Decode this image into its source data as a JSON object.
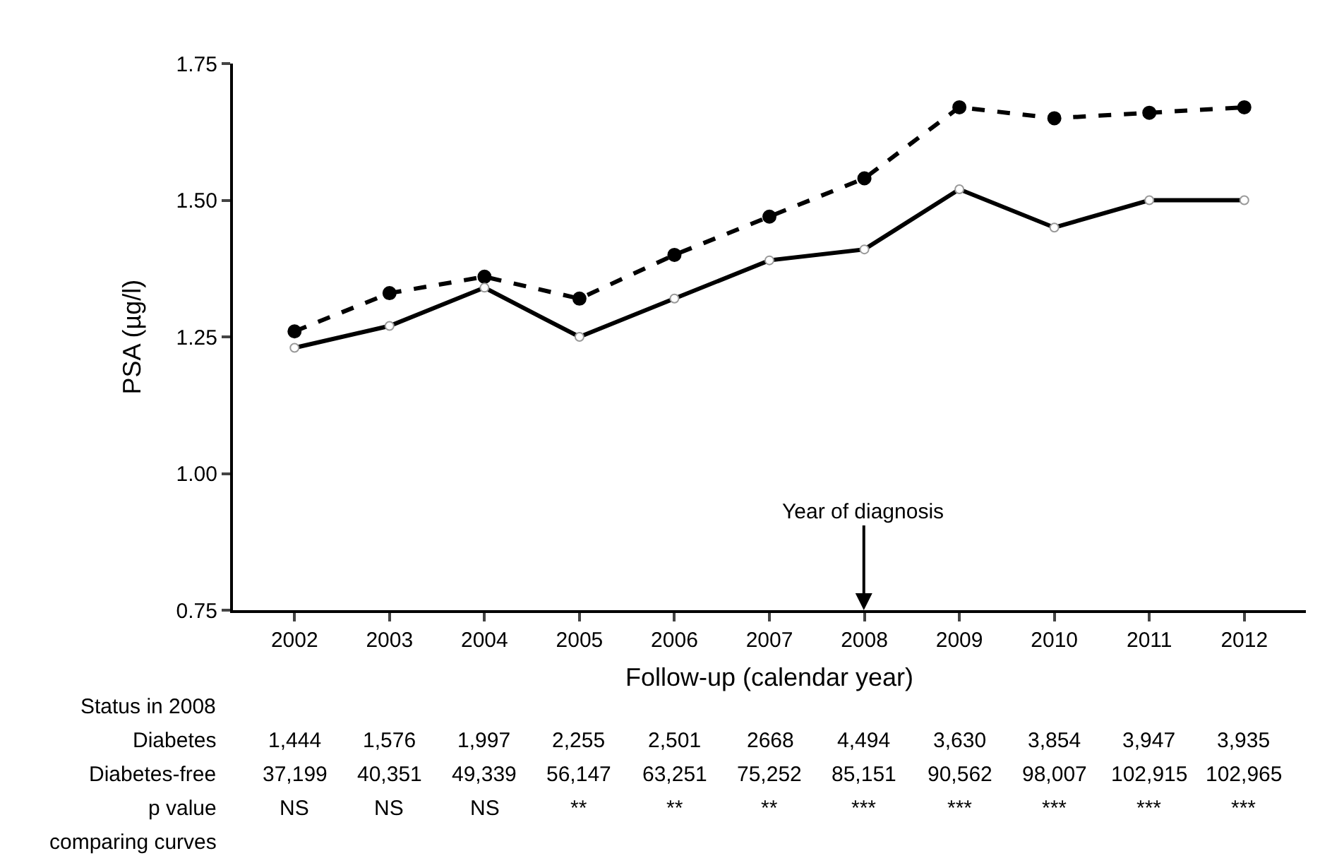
{
  "chart_data": {
    "type": "line",
    "xlabel": "Follow-up (calendar year)",
    "ylabel": "PSA (µg/l)",
    "categories": [
      "2002",
      "2003",
      "2004",
      "2005",
      "2006",
      "2007",
      "2008",
      "2009",
      "2010",
      "2011",
      "2012"
    ],
    "series": [
      {
        "color": "#000000",
        "line_style": "dashed",
        "values": [
          1.26,
          1.33,
          1.36,
          1.32,
          1.4,
          1.47,
          1.54,
          1.67,
          1.65,
          1.66,
          1.67
        ]
      },
      {
        "color": "#000000",
        "line_style": "solid",
        "values": [
          1.23,
          1.27,
          1.34,
          1.25,
          1.32,
          1.39,
          1.41,
          1.52,
          1.45,
          1.5,
          1.5
        ]
      }
    ],
    "ylim": [
      0.75,
      1.75
    ],
    "yticks": [
      {
        "value": 0.75,
        "label": "0.75"
      },
      {
        "value": 1,
        "label": "1.00"
      },
      {
        "value": 1.25,
        "label": "1.25"
      },
      {
        "value": 1.5,
        "label": "1.50"
      },
      {
        "value": 1.75,
        "label": "1.75"
      }
    ],
    "marker": "circle",
    "annotations": [
      "Year of diagnosis",
      "Status in 2008",
      "Diabetes",
      "1,444",
      "1,576",
      "1,997",
      "2,255",
      "2,501",
      "2668",
      "4,494",
      "3,630",
      "3,854",
      "3,947",
      "3,935",
      "Diabetes-free",
      "37,199",
      "40,351",
      "49,339",
      "56,147",
      "63,251",
      "75,252",
      "85,151",
      "90,562",
      "98,007",
      "102,915",
      "102,965",
      "p value",
      "NS",
      "NS",
      "NS",
      "**",
      "**",
      "**",
      "***",
      "***",
      "***",
      "***",
      "***",
      "comparing curves"
    ]
  }
}
